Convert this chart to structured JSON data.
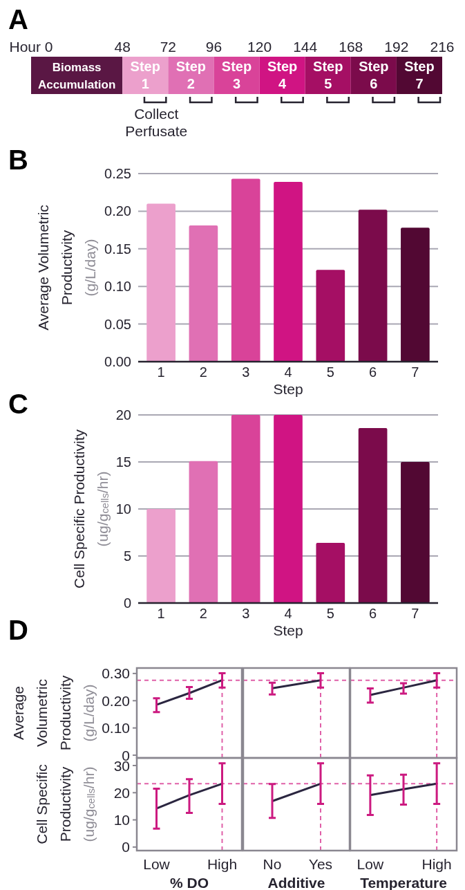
{
  "chart_data": [
    {
      "type": "bar",
      "title": "A",
      "orientation": "horizontal",
      "stacked": true,
      "categories": [
        null
      ],
      "xlim": [
        0,
        216
      ],
      "xticks": [
        {
          "value": 0,
          "label": "Hour 0"
        },
        48,
        72,
        96,
        120,
        144,
        168,
        192,
        216
      ],
      "annotations": [
        "Collect Perfusate"
      ],
      "series": [
        {
          "name": "Biomass Accumulation",
          "color": "#5a1744",
          "values": [
            48
          ]
        },
        {
          "name": "Step 1",
          "color": "#eca0cc",
          "values": [
            24
          ]
        },
        {
          "name": "Step 2",
          "color": "#e070b4",
          "values": [
            24
          ]
        },
        {
          "name": "Step 3",
          "color": "#d94399",
          "values": [
            24
          ]
        },
        {
          "name": "Step 4",
          "color": "#d01483",
          "values": [
            24
          ]
        },
        {
          "name": "Step 5",
          "color": "#a50f64",
          "values": [
            24
          ]
        },
        {
          "name": "Step 6",
          "color": "#7b0b4b",
          "values": [
            24
          ]
        },
        {
          "name": "Step 7",
          "color": "#520833",
          "values": [
            24
          ]
        }
      ]
    },
    {
      "type": "bar",
      "title": "B",
      "categories": [
        "1",
        "2",
        "3",
        "4",
        "5",
        "6",
        "7"
      ],
      "values": [
        0.21,
        0.181,
        0.243,
        0.239,
        0.122,
        0.202,
        0.178
      ],
      "colors": [
        "#eca0cc",
        "#e070b4",
        "#d94399",
        "#d01483",
        "#a50f64",
        "#7b0b4b",
        "#520833"
      ],
      "ylim": [
        0,
        0.25
      ],
      "yticks": [
        {
          "value": 0,
          "label": "0.00"
        },
        {
          "value": 0.05,
          "label": "0.05"
        },
        {
          "value": 0.1,
          "label": "0.10"
        },
        {
          "value": 0.15,
          "label": "0.15"
        },
        {
          "value": 0.2,
          "label": "0.20"
        },
        {
          "value": 0.25,
          "label": "0.25"
        }
      ],
      "xlabel": "Step",
      "ylabel": "Average Volumetric Productivity (g/L/day)",
      "grid": "y"
    },
    {
      "type": "bar",
      "title": "C",
      "categories": [
        "1",
        "2",
        "3",
        "4",
        "5",
        "6",
        "7"
      ],
      "values": [
        10.0,
        15.1,
        20.0,
        20.0,
        6.4,
        18.6,
        15.0
      ],
      "colors": [
        "#eca0cc",
        "#e070b4",
        "#d94399",
        "#d01483",
        "#a50f64",
        "#7b0b4b",
        "#520833"
      ],
      "ylim": [
        0,
        20
      ],
      "yticks": [
        0,
        5,
        10,
        15,
        20
      ],
      "xlabel": "Step",
      "ylabel": "Cell Specific Productivity (ug/g$_{cells}$/hr)",
      "grid": "y"
    },
    {
      "type": "line",
      "title": "D",
      "categories": [
        "Low",
        null,
        "High"
      ],
      "ylim": [
        -0.01,
        0.32
      ],
      "yticks": [
        0,
        {
          "value": 0.1,
          "label": "0.10"
        },
        {
          "value": 0.2,
          "label": "0.20"
        },
        {
          "value": 0.3,
          "label": "0.30"
        }
      ],
      "ylabel": "Average Volumetric Productivity (g/L/day)",
      "tick_labels": "y",
      "series": [
        {
          "color": "#2b2640",
          "values": [
            0.185,
            0.228,
            0.275
          ],
          "errors": [
            [
              0.158,
              0.209
            ],
            [
              0.207,
              0.25
            ],
            [
              0.248,
              0.301
            ]
          ]
        }
      ],
      "ref_lines": [
        {
          "axis": "y",
          "value": 0.275,
          "color": "#e060a8",
          "line_style": "dashed"
        },
        {
          "axis": "x",
          "value": "High",
          "color": "#e060a8",
          "line_style": "dashed"
        }
      ]
    },
    {
      "type": "line",
      "categories": [
        "No",
        "Yes"
      ],
      "ylim": [
        -0.01,
        0.32
      ],
      "tick_labels": false,
      "series": [
        {
          "color": "#2b2640",
          "values": [
            0.246,
            0.275
          ],
          "errors": [
            [
              0.223,
              0.266
            ],
            [
              0.248,
              0.301
            ]
          ]
        }
      ],
      "ref_lines": [
        {
          "axis": "y",
          "value": 0.275,
          "color": "#e060a8",
          "line_style": "dashed"
        },
        {
          "axis": "x",
          "value": "Yes",
          "color": "#e060a8",
          "line_style": "dashed"
        }
      ]
    },
    {
      "type": "line",
      "categories": [
        "Low",
        null,
        "High"
      ],
      "ylim": [
        -0.01,
        0.32
      ],
      "tick_labels": false,
      "series": [
        {
          "color": "#2b2640",
          "values": [
            0.221,
            0.248,
            0.275
          ],
          "errors": [
            [
              0.193,
              0.245
            ],
            [
              0.226,
              0.264
            ],
            [
              0.248,
              0.301
            ]
          ]
        }
      ],
      "ref_lines": [
        {
          "axis": "y",
          "value": 0.275,
          "color": "#e060a8",
          "line_style": "dashed"
        },
        {
          "axis": "x",
          "value": "High",
          "color": "#e060a8",
          "line_style": "dashed"
        }
      ]
    },
    {
      "type": "line",
      "categories": [
        "Low",
        null,
        "High"
      ],
      "ylim": [
        -1.3,
        32.8
      ],
      "yticks": [
        0,
        10,
        20,
        30
      ],
      "xlabel": "% DO",
      "ylabel": "Cell Specific Productivity (ug/g$_{cells}$/hr)",
      "series": [
        {
          "color": "#2b2640",
          "values": [
            14.2,
            19.1,
            23.3
          ],
          "errors": [
            [
              6.8,
              21.5
            ],
            [
              12.6,
              25.0
            ],
            [
              15.9,
              30.8
            ]
          ]
        }
      ],
      "ref_lines": [
        {
          "axis": "y",
          "value": 23.3,
          "color": "#e060a8",
          "line_style": "dashed"
        },
        {
          "axis": "x",
          "value": "High",
          "color": "#e060a8",
          "line_style": "dashed"
        }
      ]
    },
    {
      "type": "line",
      "categories": [
        "No",
        "Yes"
      ],
      "ylim": [
        -1.3,
        32.8
      ],
      "xlabel": "Additive",
      "tick_labels": "x",
      "series": [
        {
          "color": "#2b2640",
          "values": [
            16.9,
            23.3
          ],
          "errors": [
            [
              10.7,
              23.2
            ],
            [
              15.9,
              30.8
            ]
          ]
        }
      ],
      "ref_lines": [
        {
          "axis": "y",
          "value": 23.3,
          "color": "#e060a8",
          "line_style": "dashed"
        },
        {
          "axis": "x",
          "value": "Yes",
          "color": "#e060a8",
          "line_style": "dashed"
        }
      ]
    },
    {
      "type": "line",
      "categories": [
        "Low",
        null,
        "High"
      ],
      "ylim": [
        -1.3,
        32.8
      ],
      "xlabel": "Temperature",
      "tick_labels": "x",
      "series": [
        {
          "color": "#2b2640",
          "values": [
            19.1,
            21.3,
            23.3
          ],
          "errors": [
            [
              11.8,
              26.4
            ],
            [
              15.6,
              26.6
            ],
            [
              15.9,
              30.8
            ]
          ]
        }
      ],
      "ref_lines": [
        {
          "axis": "y",
          "value": 23.3,
          "color": "#e060a8",
          "line_style": "dashed"
        },
        {
          "axis": "x",
          "value": "High",
          "color": "#e060a8",
          "line_style": "dashed"
        }
      ]
    }
  ]
}
